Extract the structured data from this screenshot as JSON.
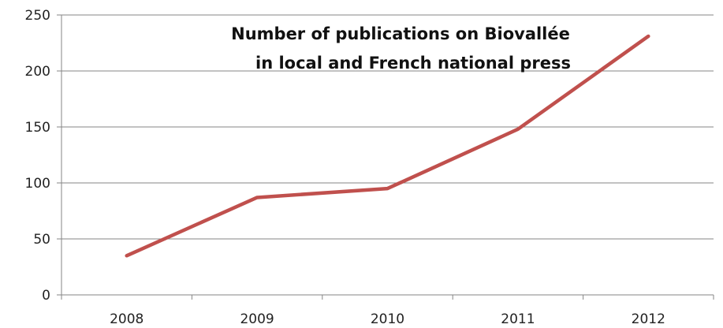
{
  "chart_data": {
    "type": "line",
    "title_lines": [
      "Number of publications on Biovallée",
      "in local and French national press"
    ],
    "categories": [
      "2008",
      "2009",
      "2010",
      "2011",
      "2012"
    ],
    "series": [
      {
        "values": [
          35,
          87,
          95,
          148,
          231
        ],
        "color": "#c0504d"
      }
    ],
    "ylim": [
      0,
      250
    ],
    "yticks": [
      0,
      50,
      100,
      150,
      200,
      250
    ],
    "grid": true
  }
}
